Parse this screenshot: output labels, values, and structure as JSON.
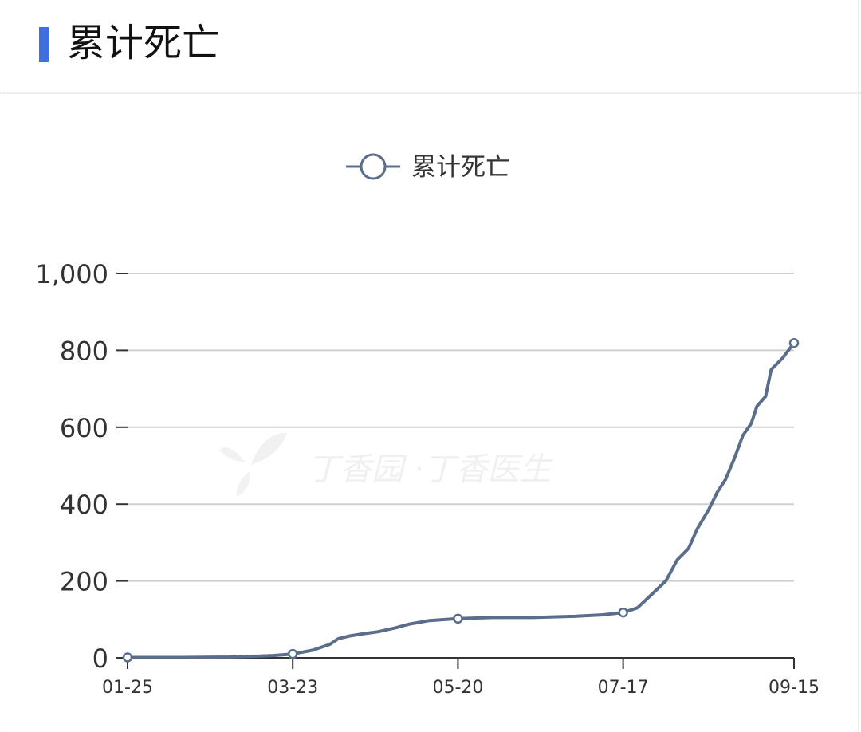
{
  "header": {
    "title": "累计死亡",
    "accent_color": "#3f6fe0"
  },
  "watermark": {
    "text": "丁香园 ·丁香医生",
    "icon": "clove-leaf-icon"
  },
  "chart_data": {
    "type": "line",
    "title": "",
    "xlabel": "",
    "ylabel": "",
    "ylim": [
      0,
      1000
    ],
    "yticks": [
      "0",
      "200",
      "400",
      "600",
      "800",
      "1,000"
    ],
    "ytick_values": [
      0,
      200,
      400,
      600,
      800,
      1000
    ],
    "xticks": [
      "01-25",
      "03-23",
      "05-20",
      "07-17",
      "09-15"
    ],
    "legend_position": "top-center",
    "grid": true,
    "series": [
      {
        "name": "累计死亡",
        "color": "#5a6d8b",
        "marker_points": [
          {
            "x": "01-25",
            "y": 1
          },
          {
            "x": "03-23",
            "y": 10
          },
          {
            "x": "05-20",
            "y": 102
          },
          {
            "x": "07-17",
            "y": 118
          },
          {
            "x": "09-15",
            "y": 819
          }
        ],
        "points": [
          {
            "x": "01-25",
            "y": 1
          },
          {
            "x": "02-14",
            "y": 1
          },
          {
            "x": "03-01",
            "y": 2
          },
          {
            "x": "03-09",
            "y": 4
          },
          {
            "x": "03-16",
            "y": 6
          },
          {
            "x": "03-23",
            "y": 10
          },
          {
            "x": "03-30",
            "y": 20
          },
          {
            "x": "04-05",
            "y": 35
          },
          {
            "x": "04-08",
            "y": 50
          },
          {
            "x": "04-12",
            "y": 57
          },
          {
            "x": "04-17",
            "y": 63
          },
          {
            "x": "04-22",
            "y": 68
          },
          {
            "x": "04-28",
            "y": 78
          },
          {
            "x": "05-03",
            "y": 88
          },
          {
            "x": "05-10",
            "y": 97
          },
          {
            "x": "05-20",
            "y": 102
          },
          {
            "x": "06-01",
            "y": 105
          },
          {
            "x": "06-15",
            "y": 105
          },
          {
            "x": "06-30",
            "y": 108
          },
          {
            "x": "07-10",
            "y": 112
          },
          {
            "x": "07-17",
            "y": 118
          },
          {
            "x": "07-22",
            "y": 130
          },
          {
            "x": "07-27",
            "y": 165
          },
          {
            "x": "08-01",
            "y": 200
          },
          {
            "x": "08-05",
            "y": 255
          },
          {
            "x": "08-09",
            "y": 285
          },
          {
            "x": "08-12",
            "y": 335
          },
          {
            "x": "08-16",
            "y": 385
          },
          {
            "x": "08-19",
            "y": 430
          },
          {
            "x": "08-22",
            "y": 465
          },
          {
            "x": "08-25",
            "y": 518
          },
          {
            "x": "08-28",
            "y": 578
          },
          {
            "x": "08-31",
            "y": 610
          },
          {
            "x": "09-02",
            "y": 655
          },
          {
            "x": "09-05",
            "y": 680
          },
          {
            "x": "09-07",
            "y": 750
          },
          {
            "x": "09-11",
            "y": 780
          },
          {
            "x": "09-15",
            "y": 819
          }
        ]
      }
    ]
  }
}
